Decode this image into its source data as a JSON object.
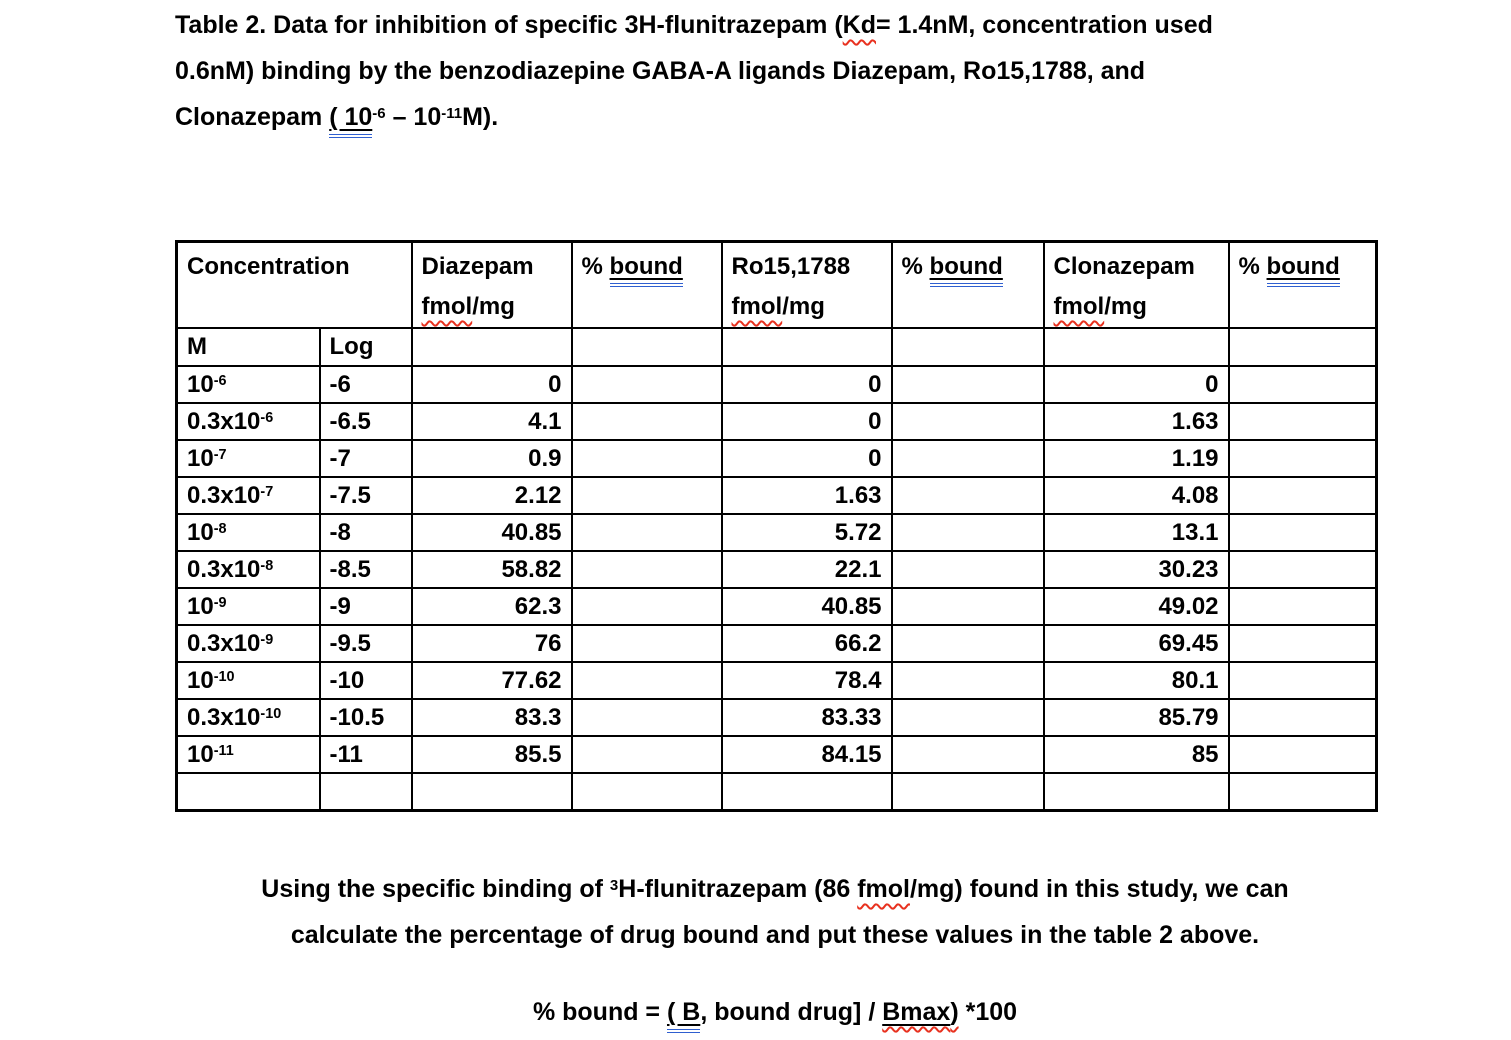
{
  "colors": {
    "text": "#000000",
    "proof_red": "#e8311f",
    "grammar_blue": "#2f5fd0",
    "table_border": "#000000",
    "background": "#ffffff"
  },
  "title": {
    "segments": [
      {
        "t": "Table 2. Data for inhibition of specific 3H-flunitrazepam ("
      },
      {
        "t": "Kd",
        "red": true
      },
      {
        "t": "= 1.4nM, concentration used"
      },
      {
        "br": true
      },
      {
        "t": "0.6nM) binding by the benzodiazepine GABA-A ligands Diazepam, Ro15,1788, and"
      },
      {
        "br": true
      },
      {
        "t": "Clonazepam "
      },
      {
        "t": "( 10",
        "u": true,
        "blue": true
      },
      {
        "t": "-6",
        "sup": true
      },
      {
        "t": " – 10"
      },
      {
        "t": "-11",
        "sup": true
      },
      {
        "t": "M)."
      }
    ]
  },
  "table": {
    "header": {
      "concentration": "Concentration",
      "m": "M",
      "log": "Log",
      "diazepam_name": "Diazepam",
      "ro15_name": "Ro15,1788",
      "clonazepam_name": "Clonazepam",
      "unit_segments": [
        {
          "t": "fmol",
          "red": true
        },
        {
          "t": "/mg"
        }
      ],
      "pct_bound_segments": [
        {
          "t": "% "
        },
        {
          "t": "bound",
          "u": true,
          "blue": true
        }
      ]
    },
    "rows": [
      {
        "m": [
          {
            "t": "10"
          },
          {
            "t": "-6",
            "sup": true
          }
        ],
        "log": "-6",
        "diazepam_fmol": "0",
        "diazepam_pct": "",
        "ro15_fmol": "0",
        "ro15_pct": "",
        "clonazepam_fmol": "0",
        "clonazepam_pct": ""
      },
      {
        "m": [
          {
            "t": "0.3x10"
          },
          {
            "t": "-6",
            "sup": true
          }
        ],
        "log": "-6.5",
        "diazepam_fmol": "4.1",
        "diazepam_pct": "",
        "ro15_fmol": "0",
        "ro15_pct": "",
        "clonazepam_fmol": "1.63",
        "clonazepam_pct": ""
      },
      {
        "m": [
          {
            "t": "10"
          },
          {
            "t": "-7",
            "sup": true
          }
        ],
        "log": "-7",
        "diazepam_fmol": "0.9",
        "diazepam_pct": "",
        "ro15_fmol": "0",
        "ro15_pct": "",
        "clonazepam_fmol": "1.19",
        "clonazepam_pct": ""
      },
      {
        "m": [
          {
            "t": "0.3x10"
          },
          {
            "t": "-7",
            "sup": true
          }
        ],
        "log": "-7.5",
        "diazepam_fmol": "2.12",
        "diazepam_pct": "",
        "ro15_fmol": "1.63",
        "ro15_pct": "",
        "clonazepam_fmol": "4.08",
        "clonazepam_pct": ""
      },
      {
        "m": [
          {
            "t": "10"
          },
          {
            "t": "-8",
            "sup": true
          }
        ],
        "log": "-8",
        "diazepam_fmol": "40.85",
        "diazepam_pct": "",
        "ro15_fmol": "5.72",
        "ro15_pct": "",
        "clonazepam_fmol": "13.1",
        "clonazepam_pct": ""
      },
      {
        "m": [
          {
            "t": "0.3x10"
          },
          {
            "t": "-8",
            "sup": true
          }
        ],
        "log": "-8.5",
        "diazepam_fmol": "58.82",
        "diazepam_pct": "",
        "ro15_fmol": "22.1",
        "ro15_pct": "",
        "clonazepam_fmol": "30.23",
        "clonazepam_pct": ""
      },
      {
        "m": [
          {
            "t": "10"
          },
          {
            "t": "-9",
            "sup": true
          }
        ],
        "log": "-9",
        "diazepam_fmol": "62.3",
        "diazepam_pct": "",
        "ro15_fmol": "40.85",
        "ro15_pct": "",
        "clonazepam_fmol": "49.02",
        "clonazepam_pct": ""
      },
      {
        "m": [
          {
            "t": "0.3x10"
          },
          {
            "t": "-9",
            "sup": true
          }
        ],
        "log": "-9.5",
        "diazepam_fmol": "76",
        "diazepam_pct": "",
        "ro15_fmol": "66.2",
        "ro15_pct": "",
        "clonazepam_fmol": "69.45",
        "clonazepam_pct": ""
      },
      {
        "m": [
          {
            "t": "10"
          },
          {
            "t": "-10",
            "sup": true
          }
        ],
        "log": "-10",
        "diazepam_fmol": "77.62",
        "diazepam_pct": "",
        "ro15_fmol": "78.4",
        "ro15_pct": "",
        "clonazepam_fmol": "80.1",
        "clonazepam_pct": ""
      },
      {
        "m": [
          {
            "t": "0.3x10"
          },
          {
            "t": "-10",
            "sup": true
          }
        ],
        "log": "-10.5",
        "diazepam_fmol": "83.3",
        "diazepam_pct": "",
        "ro15_fmol": "83.33",
        "ro15_pct": "",
        "clonazepam_fmol": "85.79",
        "clonazepam_pct": ""
      },
      {
        "m": [
          {
            "t": "10"
          },
          {
            "t": "-11",
            "sup": true
          }
        ],
        "log": "-11",
        "diazepam_fmol": "85.5",
        "diazepam_pct": "",
        "ro15_fmol": "84.15",
        "ro15_pct": "",
        "clonazepam_fmol": "85",
        "clonazepam_pct": ""
      }
    ]
  },
  "note": {
    "segments": [
      {
        "t": "Using the specific binding of "
      },
      {
        "t": "3",
        "sup": true
      },
      {
        "t": "H-flunitrazepam (86 "
      },
      {
        "t": "fmol",
        "red": true
      },
      {
        "t": "/mg) found in this study, we can"
      },
      {
        "br": true
      },
      {
        "t": "calculate the percentage of drug bound and put these values in the table 2 above."
      }
    ]
  },
  "formula": {
    "segments": [
      {
        "t": "% bound = "
      },
      {
        "t": "( B",
        "u": true,
        "blue": true
      },
      {
        "t": ", bound drug] / "
      },
      {
        "t": "Bmax",
        "u": true,
        "red": true
      },
      {
        "t": ")",
        "red": true
      },
      {
        "t": " *100"
      }
    ]
  }
}
